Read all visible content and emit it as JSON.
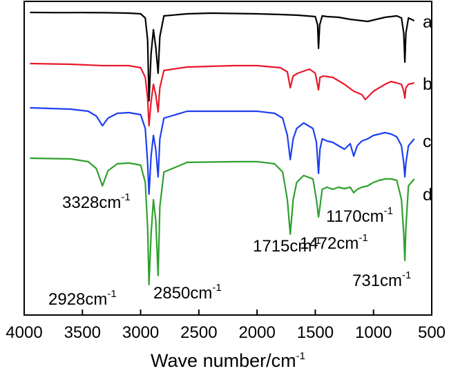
{
  "chart_data": {
    "type": "line",
    "title": "",
    "xlabel": "Wave number/cm",
    "xlabel_sup": "-1",
    "ylabel": "",
    "xlim": [
      4000,
      500
    ],
    "x_reversed": true,
    "x_ticks": [
      4000,
      3500,
      3000,
      2500,
      2000,
      1500,
      1000,
      500
    ],
    "x_tick_labels": [
      "4000",
      "3500",
      "3000",
      "2500",
      "2000",
      "1500",
      "1000",
      "500"
    ],
    "y_axis_visible": false,
    "grid": false,
    "legend": "none",
    "series": [
      {
        "name": "a",
        "color": "#000000",
        "offset": 0,
        "points": [
          [
            3950,
            0
          ],
          [
            3700,
            0.3
          ],
          [
            3500,
            0.2
          ],
          [
            3300,
            0.4
          ],
          [
            3100,
            1
          ],
          [
            3000,
            2
          ],
          [
            2960,
            8
          ],
          [
            2940,
            40
          ],
          [
            2928,
            128
          ],
          [
            2910,
            60
          ],
          [
            2890,
            25
          ],
          [
            2870,
            50
          ],
          [
            2850,
            88
          ],
          [
            2835,
            35
          ],
          [
            2800,
            5
          ],
          [
            2600,
            2
          ],
          [
            2400,
            1
          ],
          [
            2000,
            2
          ],
          [
            1800,
            3
          ],
          [
            1650,
            4
          ],
          [
            1500,
            6
          ],
          [
            1480,
            18
          ],
          [
            1472,
            52
          ],
          [
            1462,
            18
          ],
          [
            1440,
            5
          ],
          [
            1400,
            6
          ],
          [
            1300,
            7
          ],
          [
            1200,
            10
          ],
          [
            1100,
            12
          ],
          [
            1050,
            13
          ],
          [
            1000,
            11
          ],
          [
            900,
            7
          ],
          [
            800,
            5
          ],
          [
            760,
            8
          ],
          [
            740,
            30
          ],
          [
            731,
            72
          ],
          [
            722,
            30
          ],
          [
            700,
            8
          ],
          [
            650,
            12
          ]
        ]
      },
      {
        "name": "b",
        "color": "#e8182a",
        "offset": 0,
        "points": [
          [
            3950,
            0
          ],
          [
            3600,
            1
          ],
          [
            3328,
            3
          ],
          [
            3100,
            3
          ],
          [
            3000,
            6
          ],
          [
            2960,
            20
          ],
          [
            2940,
            50
          ],
          [
            2928,
            90
          ],
          [
            2910,
            55
          ],
          [
            2890,
            30
          ],
          [
            2870,
            45
          ],
          [
            2850,
            70
          ],
          [
            2835,
            35
          ],
          [
            2800,
            10
          ],
          [
            2600,
            5
          ],
          [
            2200,
            3
          ],
          [
            2000,
            3
          ],
          [
            1800,
            6
          ],
          [
            1740,
            12
          ],
          [
            1715,
            35
          ],
          [
            1690,
            18
          ],
          [
            1650,
            14
          ],
          [
            1550,
            8
          ],
          [
            1500,
            14
          ],
          [
            1472,
            38
          ],
          [
            1460,
            20
          ],
          [
            1430,
            18
          ],
          [
            1350,
            20
          ],
          [
            1250,
            30
          ],
          [
            1170,
            40
          ],
          [
            1100,
            45
          ],
          [
            1070,
            52
          ],
          [
            1000,
            40
          ],
          [
            950,
            35
          ],
          [
            900,
            30
          ],
          [
            850,
            26
          ],
          [
            800,
            28
          ],
          [
            760,
            30
          ],
          [
            740,
            40
          ],
          [
            731,
            50
          ],
          [
            722,
            35
          ],
          [
            700,
            30
          ],
          [
            650,
            28
          ]
        ]
      },
      {
        "name": "c",
        "color": "#1c3ff0",
        "offset": 0,
        "points": [
          [
            3950,
            0
          ],
          [
            3600,
            2
          ],
          [
            3450,
            5
          ],
          [
            3380,
            12
          ],
          [
            3328,
            26
          ],
          [
            3280,
            15
          ],
          [
            3200,
            8
          ],
          [
            3100,
            7
          ],
          [
            3000,
            10
          ],
          [
            2960,
            30
          ],
          [
            2940,
            80
          ],
          [
            2928,
            125
          ],
          [
            2910,
            70
          ],
          [
            2890,
            40
          ],
          [
            2870,
            60
          ],
          [
            2850,
            100
          ],
          [
            2835,
            45
          ],
          [
            2800,
            15
          ],
          [
            2600,
            5
          ],
          [
            2200,
            5
          ],
          [
            2000,
            5
          ],
          [
            1850,
            8
          ],
          [
            1780,
            15
          ],
          [
            1740,
            40
          ],
          [
            1715,
            75
          ],
          [
            1690,
            45
          ],
          [
            1660,
            30
          ],
          [
            1600,
            22
          ],
          [
            1520,
            30
          ],
          [
            1490,
            50
          ],
          [
            1472,
            95
          ],
          [
            1460,
            60
          ],
          [
            1440,
            45
          ],
          [
            1400,
            48
          ],
          [
            1350,
            50
          ],
          [
            1300,
            55
          ],
          [
            1250,
            60
          ],
          [
            1200,
            52
          ],
          [
            1170,
            70
          ],
          [
            1140,
            55
          ],
          [
            1100,
            48
          ],
          [
            1050,
            45
          ],
          [
            1000,
            40
          ],
          [
            950,
            38
          ],
          [
            900,
            36
          ],
          [
            850,
            38
          ],
          [
            800,
            42
          ],
          [
            760,
            55
          ],
          [
            740,
            80
          ],
          [
            731,
            100
          ],
          [
            722,
            80
          ],
          [
            700,
            55
          ],
          [
            650,
            45
          ]
        ]
      },
      {
        "name": "d",
        "color": "#2ea02c",
        "offset": 0,
        "points": [
          [
            3950,
            0
          ],
          [
            3600,
            1
          ],
          [
            3450,
            5
          ],
          [
            3380,
            15
          ],
          [
            3328,
            40
          ],
          [
            3280,
            18
          ],
          [
            3200,
            8
          ],
          [
            3100,
            7
          ],
          [
            3000,
            10
          ],
          [
            2960,
            35
          ],
          [
            2940,
            100
          ],
          [
            2928,
            183
          ],
          [
            2910,
            110
          ],
          [
            2890,
            60
          ],
          [
            2870,
            90
          ],
          [
            2850,
            170
          ],
          [
            2835,
            70
          ],
          [
            2800,
            20
          ],
          [
            2600,
            6
          ],
          [
            2200,
            5
          ],
          [
            2000,
            5
          ],
          [
            1850,
            8
          ],
          [
            1780,
            20
          ],
          [
            1740,
            60
          ],
          [
            1715,
            110
          ],
          [
            1690,
            60
          ],
          [
            1660,
            35
          ],
          [
            1600,
            25
          ],
          [
            1520,
            30
          ],
          [
            1490,
            60
          ],
          [
            1472,
            85
          ],
          [
            1460,
            70
          ],
          [
            1440,
            45
          ],
          [
            1400,
            42
          ],
          [
            1350,
            45
          ],
          [
            1300,
            42
          ],
          [
            1250,
            44
          ],
          [
            1200,
            42
          ],
          [
            1170,
            50
          ],
          [
            1140,
            45
          ],
          [
            1100,
            42
          ],
          [
            1050,
            40
          ],
          [
            1000,
            35
          ],
          [
            950,
            32
          ],
          [
            900,
            30
          ],
          [
            850,
            30
          ],
          [
            800,
            32
          ],
          [
            760,
            60
          ],
          [
            740,
            110
          ],
          [
            731,
            148
          ],
          [
            722,
            100
          ],
          [
            700,
            40
          ],
          [
            650,
            30
          ]
        ]
      }
    ],
    "series_labels": [
      {
        "text": "a"
      },
      {
        "text": "b"
      },
      {
        "text": "c"
      },
      {
        "text": "d"
      }
    ],
    "annotations": [
      {
        "text": "3328cm",
        "sup": "-1",
        "x": 3328
      },
      {
        "text": "2928cm",
        "sup": "-1",
        "x": 2928
      },
      {
        "text": "2850cm",
        "sup": "-1",
        "x": 2850
      },
      {
        "text": "1715cm",
        "sup": "-1",
        "x": 1715
      },
      {
        "text": "1472cm",
        "sup": "-1",
        "x": 1472
      },
      {
        "text": "1170cm",
        "sup": "-1",
        "x": 1170
      },
      {
        "text": "731cm",
        "sup": "-1",
        "x": 731
      }
    ]
  }
}
